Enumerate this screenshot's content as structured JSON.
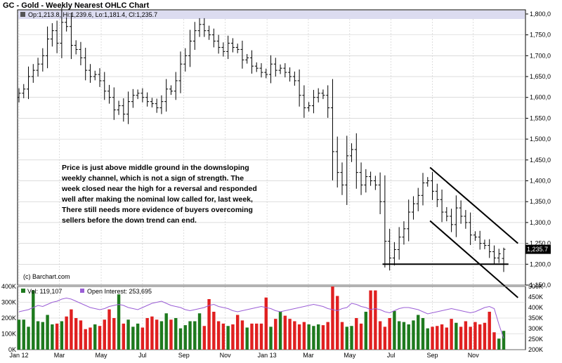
{
  "header": {
    "title": "GC - Gold - Weekly Nearest OHLC Chart",
    "price_legend": "Op:1,213.8, Hi:1,239.6, Lo:1,181.4, Cl:1,235.7",
    "watermark": "(c) Barchart.com",
    "last_price_label": "1,235.7"
  },
  "volume_legend": {
    "volume_text": "Vol: 119,107",
    "oi_text": "Open Interest: 253,695"
  },
  "annotation": {
    "lines": [
      "Price is just above middle ground in the downsloping",
      "weekly channel, which is not a sign of strength.  The",
      "week closed near the high for a reversal and responded",
      "well after making the nominal low called for, last week,",
      "There still needs more evidence of buyers overcoming",
      "sellers before the down trend can end."
    ]
  },
  "colors": {
    "up_volume": "#1e7a1e",
    "down_volume": "#e02020",
    "open_interest": "#9b5fd6",
    "bar": "#000000",
    "grid": "#c8c8c8",
    "legend_bg": "#dcdcf0",
    "last_price_bg": "#000000"
  },
  "chart_data": [
    {
      "type": "ohlc",
      "title": "GC - Gold - Weekly Nearest OHLC Chart",
      "ylim": [
        1150,
        1810
      ],
      "y_ticks": [
        "1,800,0",
        "1,750,0",
        "1,700,0",
        "1,650,0",
        "1,600,0",
        "1,550,0",
        "1,500,0",
        "1,450,0",
        "1,400,0",
        "1,350,0",
        "1,300,0",
        "1,250,0",
        "1,200,0",
        "1,150,0"
      ],
      "y_tick_values": [
        1800,
        1750,
        1700,
        1650,
        1600,
        1550,
        1500,
        1450,
        1400,
        1350,
        1300,
        1250,
        1200,
        1150
      ],
      "x_ticks": [
        {
          "label": "Jan 12",
          "week": 0
        },
        {
          "label": "Mar",
          "week": 8.5
        },
        {
          "label": "May",
          "week": 17.3
        },
        {
          "label": "Jul",
          "week": 26
        },
        {
          "label": "Sep",
          "week": 34.7
        },
        {
          "label": "Nov",
          "week": 43.4
        },
        {
          "label": "Jan 13",
          "week": 52.2
        },
        {
          "label": "Mar",
          "week": 60.9
        },
        {
          "label": "May",
          "week": 69.6
        },
        {
          "label": "Jul",
          "week": 78.3
        },
        {
          "label": "Sep",
          "week": 87
        },
        {
          "label": "Nov",
          "week": 95.6
        }
      ],
      "closes": [
        1610,
        1620,
        1650,
        1665,
        1680,
        1700,
        1740,
        1760,
        1730,
        1780,
        1770,
        1725,
        1715,
        1695,
        1665,
        1650,
        1655,
        1640,
        1615,
        1600,
        1570,
        1580,
        1560,
        1590,
        1605,
        1610,
        1600,
        1590,
        1585,
        1575,
        1590,
        1620,
        1615,
        1640,
        1680,
        1700,
        1735,
        1760,
        1775,
        1760,
        1750,
        1735,
        1720,
        1710,
        1730,
        1720,
        1715,
        1690,
        1695,
        1675,
        1670,
        1660,
        1655,
        1680,
        1665,
        1670,
        1660,
        1650,
        1640,
        1605,
        1575,
        1580,
        1600,
        1610,
        1605,
        1575,
        1470,
        1420,
        1390,
        1460,
        1475,
        1420,
        1390,
        1410,
        1400,
        1390,
        1350,
        1255,
        1215,
        1235,
        1265,
        1285,
        1325,
        1345,
        1365,
        1395,
        1400,
        1375,
        1355,
        1325,
        1315,
        1295,
        1335,
        1315,
        1300,
        1270,
        1265,
        1250,
        1245,
        1230,
        1215,
        1225,
        1236
      ],
      "first_week_open": 1600,
      "last_bar": {
        "open": 1213.8,
        "high": 1239.6,
        "low": 1181.4,
        "close": 1235.7
      },
      "last_price": 1235.7,
      "trendlines": [
        {
          "from": [
            86.5,
            1432
          ],
          "to": [
            105,
            1250
          ]
        },
        {
          "from": [
            86.5,
            1304
          ],
          "to": [
            105,
            1120
          ]
        },
        {
          "from": [
            76.5,
            1200
          ],
          "to": [
            103,
            1200
          ]
        }
      ]
    },
    {
      "type": "bar",
      "title": "Volume / Open Interest",
      "left_ticks": [
        "400K",
        "300K",
        "200K",
        "100K",
        "0K"
      ],
      "left_tick_values": [
        400,
        300,
        200,
        100,
        0
      ],
      "right_ticks": [
        "500K",
        "450K",
        "400K",
        "350K",
        "300K",
        "250K",
        "200K"
      ],
      "right_tick_values": [
        500,
        450,
        400,
        350,
        300,
        250,
        200
      ],
      "volume_ylim": [
        0,
        400
      ],
      "oi_ylim": [
        200,
        500
      ],
      "volume": [
        190,
        190,
        145,
        375,
        180,
        175,
        220,
        160,
        165,
        180,
        210,
        255,
        200,
        185,
        130,
        140,
        160,
        150,
        190,
        255,
        200,
        350,
        165,
        190,
        145,
        165,
        140,
        200,
        210,
        190,
        180,
        230,
        190,
        200,
        135,
        155,
        180,
        180,
        230,
        150,
        320,
        240,
        180,
        165,
        150,
        160,
        220,
        185,
        140,
        165,
        165,
        165,
        330,
        145,
        195,
        240,
        215,
        195,
        180,
        160,
        175,
        160,
        150,
        160,
        155,
        175,
        400,
        340,
        175,
        145,
        150,
        200,
        165,
        240,
        375,
        375,
        180,
        145,
        200,
        245,
        180,
        175,
        160,
        185,
        220,
        200,
        135,
        145,
        150,
        160,
        140,
        195,
        170,
        145,
        180,
        145,
        175,
        160,
        170,
        240,
        110,
        70,
        119
      ],
      "open_interest": [
        380,
        385,
        390,
        400,
        410,
        405,
        415,
        425,
        430,
        440,
        445,
        440,
        430,
        420,
        410,
        400,
        395,
        390,
        395,
        405,
        410,
        415,
        410,
        400,
        395,
        390,
        400,
        410,
        420,
        425,
        430,
        420,
        410,
        405,
        400,
        390,
        385,
        390,
        395,
        400,
        410,
        415,
        405,
        400,
        395,
        385,
        380,
        385,
        390,
        395,
        400,
        405,
        400,
        395,
        385,
        380,
        385,
        390,
        395,
        400,
        405,
        410,
        415,
        410,
        405,
        395,
        390,
        385,
        395,
        400,
        420,
        415,
        405,
        400,
        390,
        395,
        390,
        380,
        375,
        385,
        395,
        400,
        400,
        395,
        390,
        380,
        370,
        375,
        380,
        385,
        390,
        395,
        390,
        385,
        380,
        375,
        380,
        390,
        400,
        405,
        395,
        320,
        253.7
      ]
    }
  ]
}
